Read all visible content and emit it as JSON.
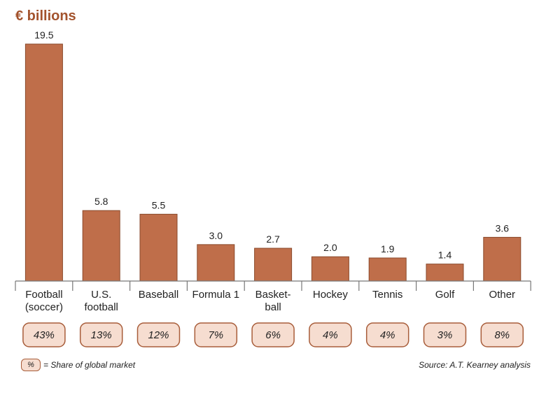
{
  "chart_data": {
    "type": "bar",
    "title": "€ billions",
    "categories": [
      [
        "Football",
        "(soccer)"
      ],
      [
        "U.S.",
        "football"
      ],
      [
        "Baseball"
      ],
      [
        "Formula 1"
      ],
      [
        "Basket-",
        "ball"
      ],
      [
        "Hockey"
      ],
      [
        "Tennis"
      ],
      [
        "Golf"
      ],
      [
        "Other"
      ]
    ],
    "values": [
      19.5,
      5.8,
      5.5,
      3.0,
      2.7,
      2.0,
      1.9,
      1.4,
      3.6
    ],
    "value_labels": [
      "19.5",
      "5.8",
      "5.5",
      "3.0",
      "2.7",
      "2.0",
      "1.9",
      "1.4",
      "3.6"
    ],
    "shares": [
      "43%",
      "13%",
      "12%",
      "7%",
      "6%",
      "4%",
      "4%",
      "3%",
      "8%"
    ],
    "ylim": [
      0,
      19.5
    ],
    "grid": false,
    "bar_color": "#bf6e4a",
    "bar_edge_color": "#8a4a2c",
    "badge_fill": "#f6ddd0",
    "badge_edge": "#a85d3a"
  },
  "legend": {
    "badge": "%",
    "text": "= Share of global market"
  },
  "source": "Source: A.T. Kearney analysis"
}
